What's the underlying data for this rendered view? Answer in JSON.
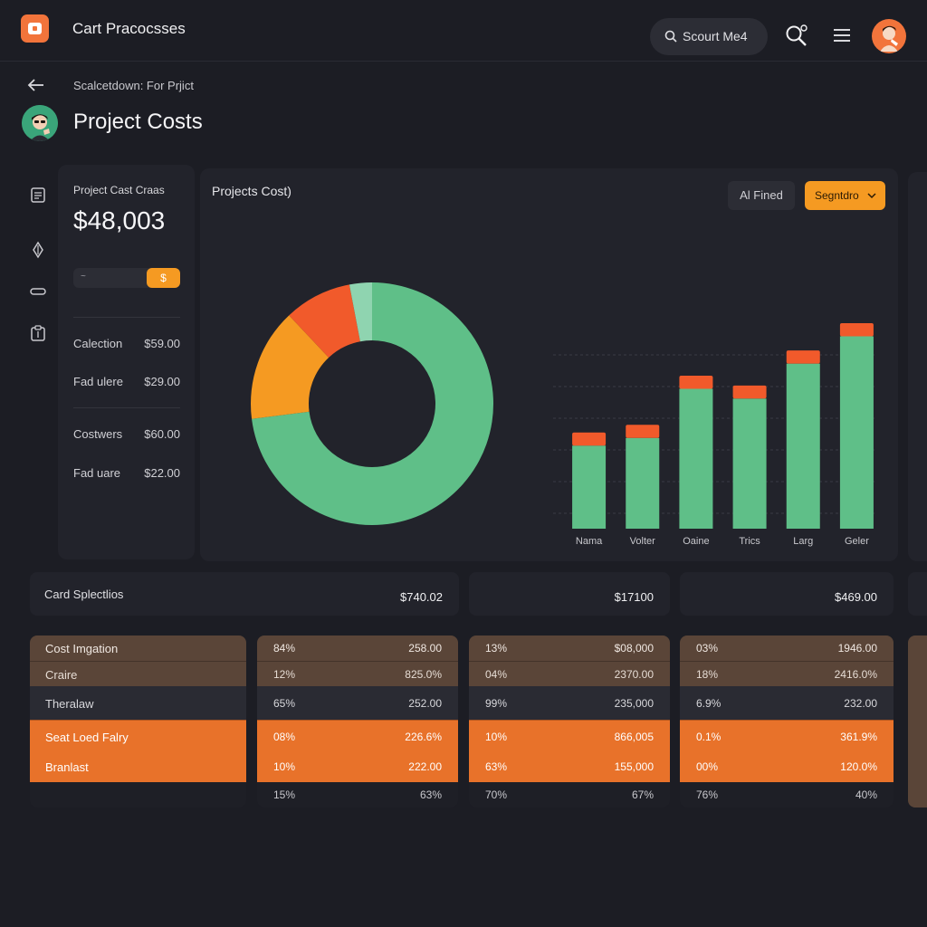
{
  "header": {
    "app_title": "Cart Pracocsses",
    "search_label": "Scourt Me4",
    "breadcrumb": "Scalcetdown: For Prjict",
    "page_title": "Project Costs"
  },
  "summary": {
    "label": "Project Cast Craas",
    "total": "$48,003",
    "toggle_off": "~",
    "toggle_on": "$",
    "items": [
      {
        "label": "Calection",
        "value": "$59.00"
      },
      {
        "label": "Fad ulere",
        "value": "$29.00"
      },
      {
        "label": "Costwers",
        "value": "$60.00"
      },
      {
        "label": "Fad uare",
        "value": "$22.00"
      }
    ]
  },
  "chart_panel": {
    "title": "Projects Cost)",
    "filter_label": "Al Fined",
    "segment_label": "Segntdro"
  },
  "chart_data": [
    {
      "type": "pie",
      "slices": [
        {
          "value": 73,
          "color": "#5fbf88"
        },
        {
          "value": 15,
          "color": "#f59a22"
        },
        {
          "value": 9,
          "color": "#f15a2b"
        },
        {
          "value": 3,
          "color": "#8fd4b0"
        }
      ]
    },
    {
      "type": "bar",
      "categories": [
        "Nama",
        "Volter",
        "Oaine",
        "Trics",
        "Larg",
        "Geler"
      ],
      "series": [
        {
          "values": [
            76,
            83,
            128,
            119,
            151,
            176
          ],
          "color": "#5fbf88"
        },
        {
          "values": [
            12,
            12,
            12,
            12,
            12,
            12
          ],
          "color": "#f15a2b"
        }
      ],
      "gridlines": 6
    }
  ],
  "strips": [
    {
      "label": "Card Splectlios",
      "value": "$740.02"
    },
    {
      "label": "",
      "value": "$17100"
    },
    {
      "label": "",
      "value": "$469.00"
    }
  ],
  "table": {
    "names": [
      "Cost Imgation",
      "Craire",
      "Theralaw",
      "Seat Loed Falry",
      "Branlast",
      ""
    ],
    "col1": [
      [
        "84%",
        "258.00"
      ],
      [
        "12%",
        "825.0%"
      ],
      [
        "65%",
        "252.00"
      ],
      [
        "08%",
        "226.6%"
      ],
      [
        "10%",
        "222.00"
      ],
      [
        "15%",
        "63%"
      ]
    ],
    "col2": [
      [
        "13%",
        "$08,000"
      ],
      [
        "04%",
        "2370.00"
      ],
      [
        "99%",
        "235,000"
      ],
      [
        "10%",
        "866,005"
      ],
      [
        "63%",
        "155,000"
      ],
      [
        "70%",
        "67%"
      ]
    ],
    "col3": [
      [
        "03%",
        "1946.00"
      ],
      [
        "18%",
        "2416.0%"
      ],
      [
        "6.9%",
        "232.00"
      ],
      [
        "0.1%",
        "361.9%"
      ],
      [
        "00%",
        "120.0%"
      ],
      [
        "76%",
        "40%"
      ]
    ]
  },
  "colors": {
    "background": "#1c1d24",
    "panel": "#22232b",
    "accent_orange": "#f2743b",
    "accent_amber": "#f59a22",
    "accent_green": "#5fbf88",
    "row_brown": "#5a4538",
    "row_orange": "#e8722a"
  }
}
